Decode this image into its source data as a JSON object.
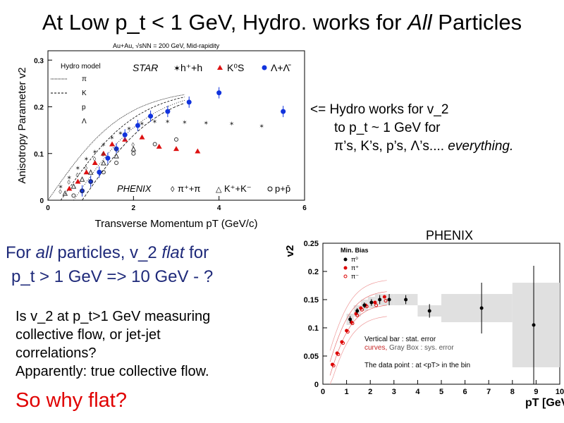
{
  "slide": {
    "title_pre": "At Low p_t < 1 GeV, Hydro. works for ",
    "title_em": "All",
    "title_post": " Particles",
    "note_lines": [
      "<= Hydro works for v_2",
      "to p_t ~ 1 GeV for",
      "π’s, K’s, p’s, Λ’s...."
    ],
    "note_em": " everything.",
    "flat_l1_em1": "For ",
    "flat_l1_em1b": "all",
    "flat_l1_mid": " particles, v_2 ",
    "flat_l1_em2": "flat",
    "flat_l1_post": " for",
    "flat_l2": "p_t > 1 GeV => 10 GeV - ?",
    "question_lines": [
      "Is v_2 at p_t>1 GeV measuring",
      "collective flow, or jet-jet",
      "correlations?",
      "Apparently: true collective flow."
    ],
    "so_why": "So why flat?",
    "phenix_label": "PHENIX"
  },
  "chart_data": [
    {
      "type": "scatter",
      "subtitle": "Au+Au, √sNN = 200 GeV, Mid-rapidity",
      "xlabel": "Transverse Momentum pT (GeV/c)",
      "ylabel": "Anisotropy Parameter v2",
      "xlim": [
        0,
        6
      ],
      "ylim": [
        0,
        0.32
      ],
      "x_ticks": [
        "0",
        "2",
        "4",
        "6"
      ],
      "y_ticks": [
        "0",
        "0.1",
        "0.2",
        "0.3"
      ],
      "legend_hydro": {
        "title": "Hydro model",
        "items": [
          "π",
          "K",
          "p",
          "Λ"
        ]
      },
      "legend_star": {
        "label": "STAR",
        "entries": [
          "h⁺+h",
          "K⁰S",
          "Λ+Λ̄"
        ]
      },
      "legend_phenix": {
        "label": "PHENIX",
        "entries": [
          "π⁺+π",
          "K⁺+K⁻",
          "p+p̄"
        ]
      },
      "series": [
        {
          "name": "h⁺+h",
          "color": "#444444",
          "points": [
            [
              0.3,
              0.03
            ],
            [
              0.5,
              0.05
            ],
            [
              0.7,
              0.07
            ],
            [
              0.9,
              0.09
            ],
            [
              1.1,
              0.105
            ],
            [
              1.3,
              0.12
            ],
            [
              1.5,
              0.135
            ],
            [
              1.7,
              0.145
            ],
            [
              1.9,
              0.155
            ],
            [
              2.2,
              0.165
            ],
            [
              2.5,
              0.17
            ],
            [
              2.8,
              0.17
            ],
            [
              3.2,
              0.168
            ],
            [
              3.7,
              0.167
            ],
            [
              4.3,
              0.165
            ],
            [
              5.0,
              0.16
            ]
          ]
        },
        {
          "name": "K⁰S",
          "color": "#dd1111",
          "points": [
            [
              0.5,
              0.025
            ],
            [
              0.7,
              0.04
            ],
            [
              0.9,
              0.06
            ],
            [
              1.1,
              0.08
            ],
            [
              1.3,
              0.1
            ],
            [
              1.5,
              0.12
            ],
            [
              1.8,
              0.13
            ],
            [
              2.2,
              0.135
            ],
            [
              2.6,
              0.115
            ],
            [
              3.0,
              0.11
            ],
            [
              3.5,
              0.105
            ]
          ]
        },
        {
          "name": "Λ+Λ̄",
          "color": "#1133dd",
          "points": [
            [
              0.8,
              0.02
            ],
            [
              1.0,
              0.04
            ],
            [
              1.2,
              0.06
            ],
            [
              1.4,
              0.09
            ],
            [
              1.6,
              0.11
            ],
            [
              1.8,
              0.14
            ],
            [
              2.1,
              0.16
            ],
            [
              2.4,
              0.18
            ],
            [
              2.8,
              0.19
            ],
            [
              3.3,
              0.21
            ],
            [
              4.0,
              0.23
            ],
            [
              5.5,
              0.19
            ]
          ]
        },
        {
          "name": "π⁺+π",
          "color": "#333333",
          "points": [
            [
              0.3,
              0.02
            ],
            [
              0.5,
              0.04
            ],
            [
              0.7,
              0.055
            ],
            [
              0.9,
              0.07
            ],
            [
              1.1,
              0.09
            ],
            [
              1.3,
              0.1
            ],
            [
              1.6,
              0.11
            ],
            [
              2.0,
              0.12
            ]
          ]
        },
        {
          "name": "K⁺+K⁻",
          "color": "#333333",
          "points": [
            [
              0.4,
              0.015
            ],
            [
              0.6,
              0.03
            ],
            [
              0.8,
              0.045
            ],
            [
              1.0,
              0.06
            ],
            [
              1.3,
              0.08
            ],
            [
              1.6,
              0.095
            ],
            [
              2.0,
              0.11
            ]
          ]
        },
        {
          "name": "p+p̄",
          "color": "#333333",
          "points": [
            [
              0.6,
              0.01
            ],
            [
              0.8,
              0.02
            ],
            [
              1.0,
              0.04
            ],
            [
              1.3,
              0.06
            ],
            [
              1.6,
              0.08
            ],
            [
              2.0,
              0.1
            ],
            [
              2.5,
              0.12
            ],
            [
              3.0,
              0.13
            ]
          ]
        }
      ]
    },
    {
      "type": "scatter",
      "title": "PHENIX",
      "xlabel": "pT [GeV/c]",
      "ylabel": "v2",
      "xlim": [
        0,
        10
      ],
      "ylim": [
        0,
        0.25
      ],
      "x_ticks": [
        "0",
        "1",
        "2",
        "3",
        "4",
        "5",
        "6",
        "7",
        "8",
        "9",
        "10"
      ],
      "y_ticks": [
        "0",
        "0.05",
        "0.1",
        "0.15",
        "0.2",
        "0.25"
      ],
      "legend": {
        "title": "Min. Bias",
        "entries": [
          "π⁰",
          "π⁺",
          "π⁻"
        ]
      },
      "annotation_1": "Vertical bar : stat. error",
      "annotation_2a": "curves,",
      "annotation_2b": " Gray Box : sys. error",
      "annotation_3": "The data point : at <pT> in the bin",
      "pi0": [
        {
          "x": 1.15,
          "y": 0.115,
          "err": 0.006,
          "box": [
            1.0,
            1.3,
            0.105,
            0.125
          ]
        },
        {
          "x": 1.45,
          "y": 0.13,
          "err": 0.005,
          "box": [
            1.3,
            1.6,
            0.12,
            0.14
          ]
        },
        {
          "x": 1.75,
          "y": 0.14,
          "err": 0.005,
          "box": [
            1.6,
            1.9,
            0.13,
            0.15
          ]
        },
        {
          "x": 2.05,
          "y": 0.145,
          "err": 0.006,
          "box": [
            1.9,
            2.2,
            0.135,
            0.155
          ]
        },
        {
          "x": 2.4,
          "y": 0.15,
          "err": 0.008,
          "box": [
            2.2,
            2.6,
            0.14,
            0.16
          ]
        },
        {
          "x": 2.8,
          "y": 0.15,
          "err": 0.01,
          "box": [
            2.6,
            3.0,
            0.14,
            0.16
          ]
        },
        {
          "x": 3.5,
          "y": 0.15,
          "err": 0.008,
          "box": [
            3.0,
            4.0,
            0.14,
            0.16
          ]
        },
        {
          "x": 4.5,
          "y": 0.13,
          "err": 0.012,
          "box": [
            4.0,
            5.0,
            0.12,
            0.14
          ]
        },
        {
          "x": 6.7,
          "y": 0.135,
          "err": 0.045,
          "box": [
            5.0,
            8.0,
            0.11,
            0.16
          ]
        },
        {
          "x": 8.9,
          "y": 0.105,
          "err": 0.105,
          "box": [
            8.0,
            10.0,
            0.03,
            0.18
          ]
        }
      ],
      "pi_plus": [
        [
          0.4,
          0.035
        ],
        [
          0.6,
          0.055
        ],
        [
          0.8,
          0.075
        ],
        [
          1.0,
          0.095
        ],
        [
          1.2,
          0.11
        ],
        [
          1.4,
          0.125
        ],
        [
          1.6,
          0.135
        ],
        [
          1.8,
          0.14
        ],
        [
          2.2,
          0.145
        ],
        [
          2.6,
          0.155
        ]
      ],
      "pi_minus": [
        [
          0.45,
          0.033
        ],
        [
          0.65,
          0.053
        ],
        [
          0.85,
          0.073
        ],
        [
          1.05,
          0.093
        ],
        [
          1.25,
          0.108
        ],
        [
          1.45,
          0.122
        ],
        [
          1.65,
          0.132
        ],
        [
          1.85,
          0.138
        ],
        [
          2.25,
          0.14
        ],
        [
          2.65,
          0.148
        ]
      ]
    }
  ]
}
